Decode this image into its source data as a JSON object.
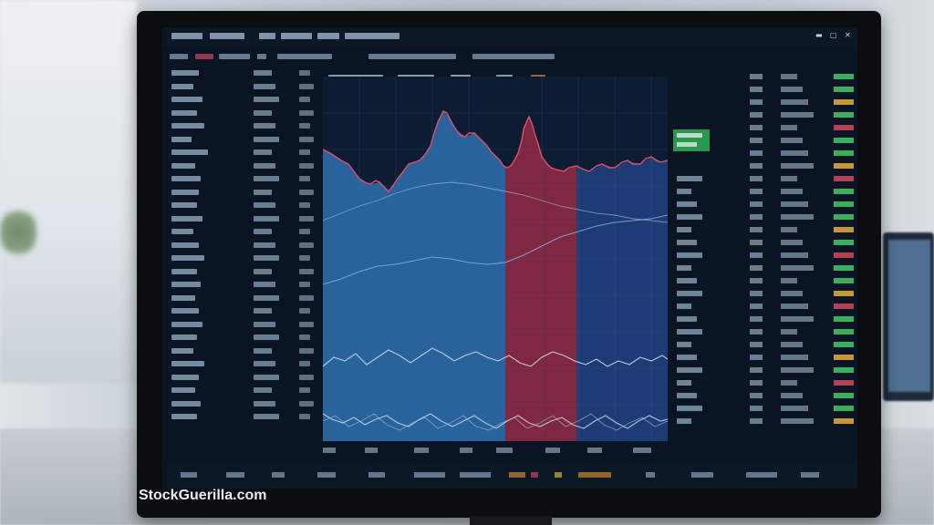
{
  "watermark": "StockGuerilla.com",
  "colors": {
    "blue_fill": "#2c6ca8",
    "red_fill": "#8b2942",
    "navy_fill": "#1f3d78",
    "red_line": "#e0506a",
    "grid": "#2a4466",
    "green_tag": "#2fae55"
  },
  "window_controls": [
    "minimize-icon",
    "maximize-icon",
    "close-icon"
  ]
}
